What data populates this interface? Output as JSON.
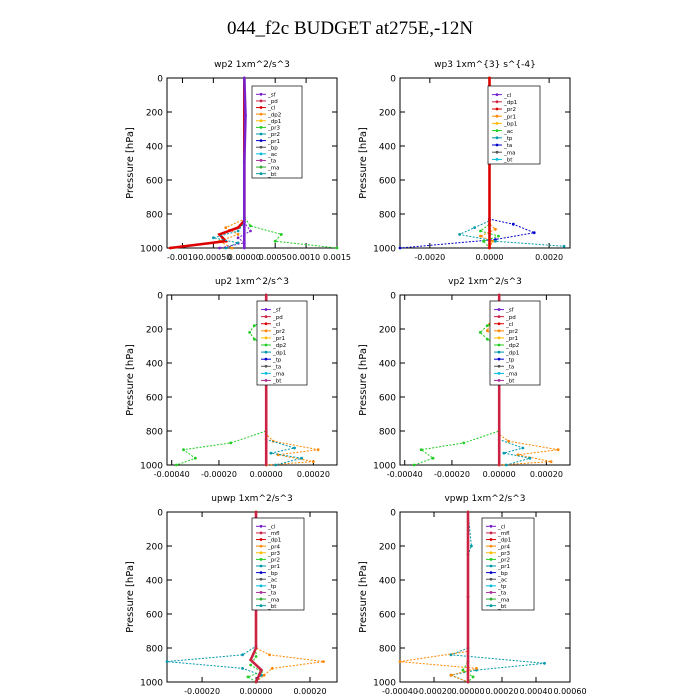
{
  "title": "044_f2c  BUDGET at275E,-12N",
  "chart_data": [
    {
      "type": "line",
      "title": "wp2  1xm^2/s^3",
      "ylabel": "Pressure [hPa]",
      "ylim": [
        1000,
        0
      ],
      "xlim": [
        -0.00125,
        0.0015
      ],
      "xticks": [
        "-0.0010",
        "-0.00050",
        "0.00000",
        "0.00050",
        "0.0010",
        "0.0015"
      ],
      "xtick_values": [
        -0.001,
        -0.0005,
        0,
        0.0005,
        0.001,
        0.0015
      ],
      "yticks": [
        "0",
        "200",
        "400",
        "600",
        "800",
        "1000"
      ],
      "ytick_values": [
        0,
        200,
        400,
        600,
        800,
        1000
      ],
      "legend": [
        "_sf",
        "_pd",
        "_cl",
        "_dp2",
        "_dp1",
        "_pr3",
        "_pr2",
        "_pr1",
        "_bp",
        "_ac",
        "_ta",
        "_ma",
        "_bt"
      ],
      "legend_position": "top-right",
      "series": [
        {
          "label": "_pr1",
          "color": "#22cc22",
          "x": [
            0,
            0,
            0.0001,
            0.0006,
            0.0005,
            0.0015
          ],
          "y": [
            0,
            820,
            870,
            920,
            960,
            1000
          ]
        },
        {
          "label": "_pr2",
          "color": "#ff8800",
          "x": [
            0,
            0,
            -0.0003,
            -0.0001,
            -0.0004,
            -0.0002
          ],
          "y": [
            0,
            830,
            880,
            920,
            960,
            1000
          ]
        },
        {
          "label": "_cl",
          "color": "#dd0000",
          "x": [
            0,
            0,
            -0.0001,
            -0.0004,
            -0.0003,
            -0.0012
          ],
          "y": [
            0,
            840,
            880,
            920,
            960,
            1000
          ]
        },
        {
          "label": "_ac",
          "color": "#0099aa",
          "x": [
            0,
            0,
            -0.0001,
            -0.0005,
            -0.0001,
            -0.0003
          ],
          "y": [
            0,
            850,
            900,
            940,
            970,
            1000
          ]
        },
        {
          "label": "_bp",
          "color": "#7722cc",
          "x": [
            0,
            0,
            0.0001,
            -0.0001,
            0,
            -0.0004
          ],
          "y": [
            0,
            850,
            900,
            940,
            970,
            1000
          ]
        },
        {
          "label": "_sf",
          "color": "#7722cc",
          "x": [
            0,
            2e-05,
            0,
            0,
            0
          ],
          "y": [
            0,
            220,
            500,
            850,
            1000
          ]
        }
      ]
    },
    {
      "type": "line",
      "title": "wp3  1xm^{3} s^{-4}",
      "ylabel": "Pressure [hPa]",
      "ylim": [
        1000,
        0
      ],
      "xlim": [
        -0.003,
        0.0027
      ],
      "xticks": [
        "-0.0020",
        "0.0000",
        "0.0020"
      ],
      "xtick_values": [
        -0.002,
        0,
        0.002
      ],
      "yticks": [
        "0",
        "200",
        "400",
        "600",
        "800",
        "1000"
      ],
      "ytick_values": [
        0,
        200,
        400,
        600,
        800,
        1000
      ],
      "legend": [
        "_cl",
        "_dp1",
        "_pr2",
        "_pr1",
        "_bp1",
        "_ac",
        "_tp",
        "_ta",
        "_ma",
        "_bt"
      ],
      "legend_position": "top-right",
      "series": [
        {
          "label": "_tp",
          "color": "#0000cc",
          "x": [
            0,
            0,
            0.0008,
            0.0015,
            0.0002,
            -0.003
          ],
          "y": [
            0,
            830,
            860,
            910,
            950,
            1000
          ]
        },
        {
          "label": "_ac",
          "color": "#0099aa",
          "x": [
            0,
            0,
            -0.0005,
            -0.001,
            0.0002,
            0.0025
          ],
          "y": [
            0,
            840,
            880,
            920,
            960,
            990
          ]
        },
        {
          "label": "_pr1",
          "color": "#22cc22",
          "x": [
            0,
            0,
            -0.0003,
            0.0003,
            -0.0002,
            0
          ],
          "y": [
            0,
            860,
            900,
            930,
            960,
            1000
          ]
        },
        {
          "label": "_pr2",
          "color": "#ff8800",
          "x": [
            0,
            0,
            0.0002,
            -0.0003,
            0.0001,
            0
          ],
          "y": [
            0,
            860,
            890,
            930,
            960,
            1000
          ]
        },
        {
          "label": "_cl",
          "color": "#dd0000",
          "x": [
            0,
            0,
            0
          ],
          "y": [
            0,
            500,
            1000
          ]
        }
      ]
    },
    {
      "type": "line",
      "title": "up2  1xm^2/s^3",
      "ylabel": "Pressure [hPa]",
      "ylim": [
        1000,
        0
      ],
      "xlim": [
        -0.00042,
        0.0003
      ],
      "xticks": [
        "-0.00040",
        "-0.00020",
        "0.00000",
        "0.00020"
      ],
      "xtick_values": [
        -0.0004,
        -0.0002,
        0,
        0.0002
      ],
      "yticks": [
        "0",
        "200",
        "400",
        "600",
        "800",
        "1000"
      ],
      "ytick_values": [
        0,
        200,
        400,
        600,
        800,
        1000
      ],
      "legend": [
        "_sf",
        "_pd",
        "_cl",
        "_pr2",
        "_pr1",
        "_dp2",
        "_dp1",
        "_tp",
        "_ta",
        "_ma",
        "_bt"
      ],
      "legend_position": "top-right",
      "series": [
        {
          "label": "_pr2",
          "color": "#ff8800",
          "x": [
            0,
            0,
            -2e-05,
            0,
            0,
            3e-05,
            0.00022,
            5e-05,
            0.0002,
            0
          ],
          "y": [
            0,
            150,
            200,
            260,
            820,
            860,
            910,
            940,
            980,
            1000
          ]
        },
        {
          "label": "_pr1",
          "color": "#22cc22",
          "x": [
            0,
            0,
            -5e-05,
            -7e-05,
            -5e-05,
            0,
            0,
            -0.00015,
            -0.00035,
            -0.0003,
            -0.00038
          ],
          "y": [
            0,
            150,
            180,
            220,
            260,
            300,
            800,
            870,
            910,
            960,
            1000
          ]
        },
        {
          "label": "_tp",
          "color": "#0099aa",
          "x": [
            0,
            1e-05,
            3e-05,
            1e-05,
            0,
            0,
            0.00012,
            2e-05,
            0.00015,
            4e-05
          ],
          "y": [
            0,
            160,
            210,
            250,
            300,
            850,
            900,
            930,
            960,
            1000
          ]
        },
        {
          "label": "_sf",
          "color": "#cc2244",
          "x": [
            0,
            0,
            0
          ],
          "y": [
            0,
            500,
            1000
          ]
        }
      ]
    },
    {
      "type": "line",
      "title": "vp2  1xm^2/s^3",
      "ylabel": "Pressure [hPa]",
      "ylim": [
        1000,
        0
      ],
      "xlim": [
        -0.00042,
        0.0003
      ],
      "xticks": [
        "-0.00040",
        "-0.00020",
        "0.00000",
        "0.00020"
      ],
      "xtick_values": [
        -0.0004,
        -0.0002,
        0,
        0.0002
      ],
      "yticks": [
        "0",
        "200",
        "400",
        "600",
        "800",
        "1000"
      ],
      "ytick_values": [
        0,
        200,
        400,
        600,
        800,
        1000
      ],
      "legend": [
        "_sf",
        "_pd",
        "_cl",
        "_pr2",
        "_pr1",
        "_dp2",
        "_dp1",
        "_tp",
        "_ta",
        "_ma",
        "_bt"
      ],
      "legend_position": "top-right",
      "series": [
        {
          "label": "_pr2",
          "color": "#ff8800",
          "x": [
            0,
            0,
            -4e-05,
            -5e-05,
            -2e-05,
            0,
            0,
            4e-05,
            0.00025,
            8e-05,
            0.00022,
            0
          ],
          "y": [
            0,
            140,
            170,
            210,
            250,
            290,
            820,
            860,
            910,
            940,
            980,
            1000
          ]
        },
        {
          "label": "_pr1",
          "color": "#22cc22",
          "x": [
            0,
            0,
            -5e-05,
            -8e-05,
            -5e-05,
            0,
            0,
            -0.00015,
            -0.00033,
            -0.00028,
            -0.00036
          ],
          "y": [
            0,
            150,
            180,
            220,
            260,
            300,
            800,
            870,
            910,
            960,
            1000
          ]
        },
        {
          "label": "_tp",
          "color": "#0099aa",
          "x": [
            0,
            1e-05,
            3e-05,
            1e-05,
            0,
            0,
            0.0001,
            2e-05,
            0.00013,
            3e-05
          ],
          "y": [
            0,
            160,
            210,
            250,
            300,
            850,
            900,
            930,
            960,
            1000
          ]
        },
        {
          "label": "_sf",
          "color": "#cc2244",
          "x": [
            0,
            0,
            0
          ],
          "y": [
            0,
            500,
            1000
          ]
        }
      ]
    },
    {
      "type": "line",
      "title": "upwp  1xm^2/s^3",
      "ylabel": "Pressure [hPa]",
      "ylim": [
        1000,
        0
      ],
      "xlim": [
        -0.00033,
        0.0003
      ],
      "xticks": [
        "-0.00020",
        "0.00000",
        "0.00020"
      ],
      "xtick_values": [
        -0.0002,
        0,
        0.0002
      ],
      "yticks": [
        "0",
        "200",
        "400",
        "600",
        "800",
        "1000"
      ],
      "ytick_values": [
        0,
        200,
        400,
        600,
        800,
        1000
      ],
      "legend": [
        "_cl",
        "_mfl",
        "_dp1",
        "_pr4",
        "_pr3",
        "_pr2",
        "_pr1",
        "_bp",
        "_ac",
        "_tp",
        "_ta",
        "_ma",
        "_bt"
      ],
      "legend_position": "top-right",
      "series": [
        {
          "label": "_pr2",
          "color": "#ff8800",
          "x": [
            0,
            0,
            5e-05,
            0.00025,
            6e-05,
            3e-05,
            0
          ],
          "y": [
            0,
            800,
            840,
            880,
            920,
            960,
            1000
          ]
        },
        {
          "label": "_ac",
          "color": "#0099aa",
          "x": [
            0,
            0,
            -5e-05,
            -0.00033,
            -5e-05,
            2e-05,
            0
          ],
          "y": [
            0,
            790,
            840,
            880,
            920,
            960,
            1000
          ]
        },
        {
          "label": "_pr1",
          "color": "#22cc22",
          "x": [
            0,
            0,
            -2e-05,
            2e-05,
            -3e-05,
            0
          ],
          "y": [
            0,
            850,
            900,
            940,
            970,
            1000
          ]
        },
        {
          "label": "_cl",
          "color": "#cc2244",
          "x": [
            0,
            0,
            -2e-05,
            2e-05,
            0
          ],
          "y": [
            0,
            800,
            870,
            930,
            1000
          ]
        }
      ]
    },
    {
      "type": "line",
      "title": "vpwp  1xm^2/s^3",
      "ylabel": "Pressure [hPa]",
      "ylim": [
        1000,
        0
      ],
      "xlim": [
        -0.0004,
        0.0006
      ],
      "xticks": [
        "-0.00040",
        "-0.00020",
        "0.00000",
        "0.00020",
        "0.00040",
        "0.00060"
      ],
      "xtick_values": [
        -0.0004,
        -0.0002,
        0,
        0.0002,
        0.0004,
        0.0006
      ],
      "yticks": [
        "0",
        "200",
        "400",
        "600",
        "800",
        "1000"
      ],
      "ytick_values": [
        0,
        200,
        400,
        600,
        800,
        1000
      ],
      "legend": [
        "_cl",
        "_mfl",
        "_dp1",
        "_pr4",
        "_pr3",
        "_pr2",
        "_pr1",
        "_bp",
        "_ac",
        "_tp",
        "_ta",
        "_ma",
        "_bt"
      ],
      "legend_position": "top-right",
      "series": [
        {
          "label": "_ac",
          "color": "#0099aa",
          "x": [
            0,
            2e-05,
            0,
            0,
            -0.0001,
            0.00045,
            5e-05,
            -0.0001,
            0
          ],
          "y": [
            0,
            200,
            250,
            800,
            840,
            890,
            930,
            960,
            1000
          ]
        },
        {
          "label": "_pr2",
          "color": "#ff8800",
          "x": [
            0,
            0,
            -0.0004,
            5e-05,
            -0.0001,
            0
          ],
          "y": [
            0,
            820,
            880,
            920,
            960,
            1000
          ]
        },
        {
          "label": "_pr1",
          "color": "#22cc22",
          "x": [
            0,
            0,
            -3e-05,
            3e-05,
            0
          ],
          "y": [
            0,
            880,
            930,
            970,
            1000
          ]
        },
        {
          "label": "_cl",
          "color": "#cc2244",
          "x": [
            0,
            0,
            0
          ],
          "y": [
            0,
            500,
            1000
          ]
        }
      ]
    }
  ]
}
